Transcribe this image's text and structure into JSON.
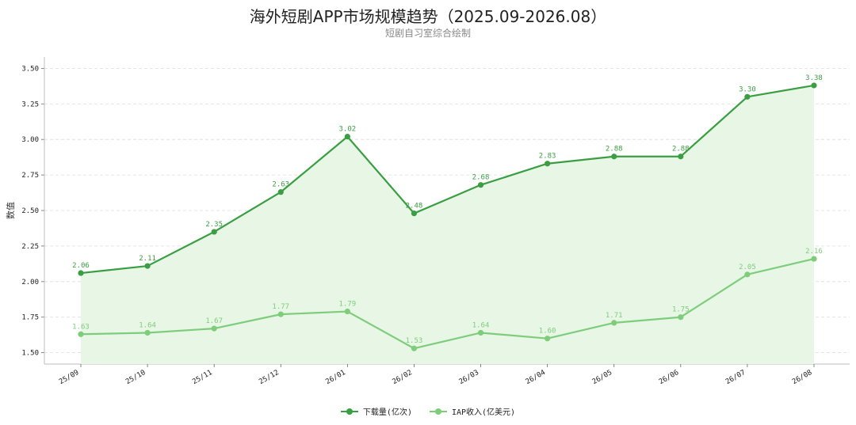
{
  "chart_data": {
    "type": "line",
    "title": "海外短剧APP市场规模趋势（2025.09-2026.08）",
    "subtitle": "短剧自习室综合绘制",
    "ylabel": "数值",
    "xlabel": "",
    "ylim": [
      1.42,
      3.58
    ],
    "yticks": [
      "1.50",
      "1.75",
      "2.00",
      "2.25",
      "2.50",
      "2.75",
      "3.00",
      "3.25",
      "3.50"
    ],
    "ytick_values": [
      1.5,
      1.75,
      2.0,
      2.25,
      2.5,
      2.75,
      3.0,
      3.25,
      3.5
    ],
    "categories": [
      "25/09",
      "25/10",
      "25/11",
      "25/12",
      "26/01",
      "26/02",
      "26/03",
      "26/04",
      "26/05",
      "26/06",
      "26/07",
      "26/08"
    ],
    "grid": "horizontal-dashed",
    "legend_position": "bottom-center",
    "series": [
      {
        "name": "下载量(亿次)",
        "color": "#3a9e42",
        "fill": "#e8f6e6",
        "values": [
          2.06,
          2.11,
          2.35,
          2.63,
          3.02,
          2.48,
          2.68,
          2.83,
          2.88,
          2.88,
          3.3,
          3.38
        ],
        "labels": [
          "2.06",
          "2.11",
          "2.35",
          "2.63",
          "3.02",
          "2.48",
          "2.68",
          "2.83",
          "2.88",
          "2.88",
          "3.30",
          "3.38"
        ]
      },
      {
        "name": "IAP收入(亿美元)",
        "color": "#7dcd7b",
        "values": [
          1.63,
          1.64,
          1.67,
          1.77,
          1.79,
          1.53,
          1.64,
          1.6,
          1.71,
          1.75,
          2.05,
          2.16
        ],
        "labels": [
          "1.63",
          "1.64",
          "1.67",
          "1.77",
          "1.79",
          "1.53",
          "1.64",
          "1.60",
          "1.71",
          "1.75",
          "2.05",
          "2.16"
        ]
      }
    ]
  }
}
